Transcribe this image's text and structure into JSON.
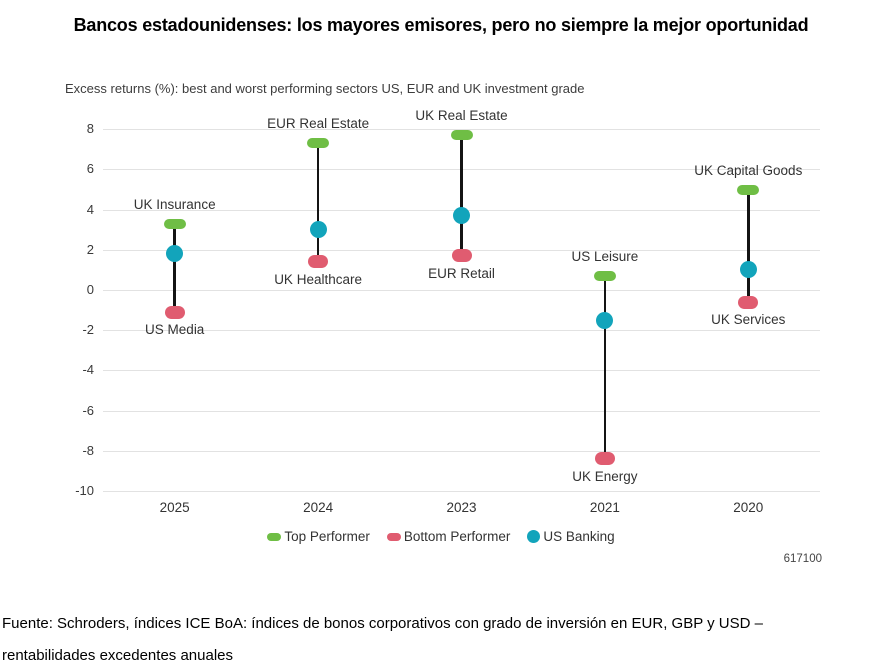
{
  "title": "Bancos estadounidenses: los mayores emisores, pero no siempre la mejor oportunidad",
  "chart_id": "617100",
  "chart_data": {
    "type": "lollipop",
    "title": "Excess returns (%): best and worst performing sectors US, EUR and UK investment grade",
    "categories": [
      "2025",
      "2024",
      "2023",
      "2021",
      "2020"
    ],
    "y_ticks": [
      8,
      6,
      4,
      2,
      0,
      -2,
      -4,
      -6,
      -8,
      -10
    ],
    "ylim": [
      -10,
      8.9
    ],
    "grid": true,
    "legend_position": "bottom",
    "series": [
      {
        "name": "Top Performer",
        "marker": "pill",
        "color": "#6fbe45",
        "values": [
          3.3,
          7.3,
          7.7,
          0.7,
          5.0
        ],
        "point_labels": [
          "UK Insurance",
          "EUR Real Estate",
          "UK Real Estate",
          "US Leisure",
          "UK Capital Goods"
        ]
      },
      {
        "name": "Bottom Performer",
        "marker": "pill",
        "color": "#e05c70",
        "values": [
          -1.1,
          1.4,
          1.7,
          -8.4,
          -0.6
        ],
        "point_labels": [
          "US Media",
          "UK Healthcare",
          "EUR Retail",
          "UK Energy",
          "UK Services"
        ]
      },
      {
        "name": "US Banking",
        "marker": "circle",
        "color": "#12a4bb",
        "values": [
          1.8,
          3.0,
          3.7,
          -1.5,
          1.0
        ],
        "point_labels": []
      }
    ]
  },
  "footer": {
    "lines": [
      "Fuente: Schroders, índices ICE BoA: índices de bonos corporativos con grado de inversión en EUR, GBP y USD –",
      "rentabilidades excedentes anuales"
    ]
  }
}
